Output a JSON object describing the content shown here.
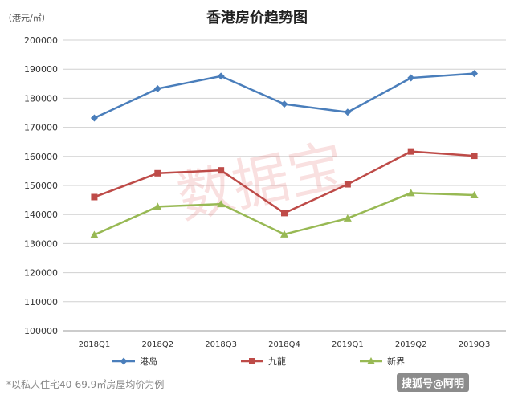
{
  "chart_data": {
    "type": "line",
    "title": "香港房价趋势图",
    "ylabel": "（港元/㎡）",
    "categories": [
      "2018Q1",
      "2018Q2",
      "2018Q3",
      "2018Q4",
      "2019Q1",
      "2019Q2",
      "2019Q3"
    ],
    "ylim": [
      100000,
      200000
    ],
    "yticks": [
      100000,
      110000,
      120000,
      130000,
      140000,
      150000,
      160000,
      170000,
      180000,
      190000,
      200000
    ],
    "grid": true,
    "legend_position": "bottom",
    "series": [
      {
        "name": "港岛",
        "color": "#4a7ebb",
        "marker": "diamond",
        "values": [
          173200,
          183300,
          187600,
          178000,
          175200,
          187000,
          188500
        ]
      },
      {
        "name": "九龍",
        "color": "#be4b48",
        "marker": "square",
        "values": [
          146000,
          154200,
          155200,
          140500,
          150400,
          161700,
          160200
        ]
      },
      {
        "name": "新界",
        "color": "#98b954",
        "marker": "triangle",
        "values": [
          133000,
          142700,
          143600,
          133200,
          138700,
          147400,
          146700
        ]
      }
    ]
  },
  "watermark": "数据宝",
  "footnote": "*以私人住宅40-69.9㎡房屋均价为例",
  "source_badge": "搜狐号@阿明"
}
